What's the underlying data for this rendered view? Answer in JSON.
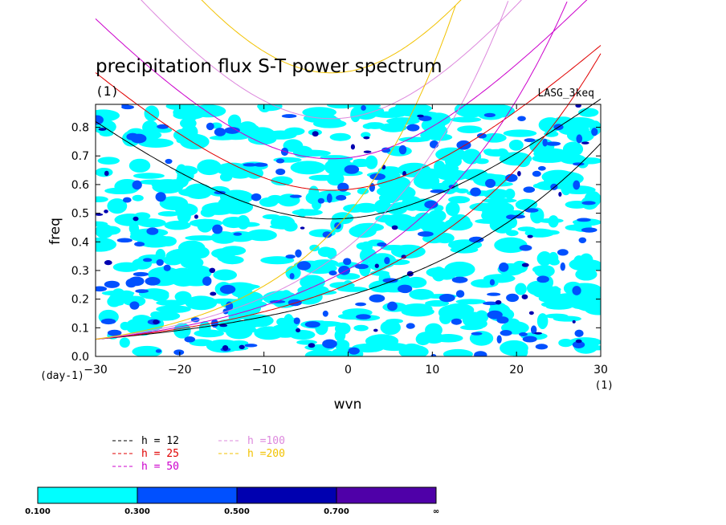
{
  "chart_data": {
    "type": "heatmap",
    "title": "precipitation flux S-T power spectrum",
    "subtitle": "(1)",
    "model": "LASG_3keq",
    "xlabel": "wvn",
    "ylabel": "freq",
    "x_unit": "(1)",
    "y_unit": "(day-1)",
    "xlim": [
      -30,
      30
    ],
    "ylim": [
      0,
      0.88
    ],
    "x_ticks": [
      "−30",
      "−20",
      "−10",
      "0",
      "10",
      "20",
      "30"
    ],
    "y_ticks": [
      "0.0",
      "0.1",
      "0.2",
      "0.3",
      "0.4",
      "0.5",
      "0.6",
      "0.7",
      "0.8"
    ],
    "x_tick_values": [
      -30,
      -20,
      -10,
      0,
      10,
      20,
      30
    ],
    "y_tick_values": [
      0,
      0.1,
      0.2,
      0.3,
      0.4,
      0.5,
      0.6,
      0.7,
      0.8
    ],
    "colorbar": {
      "levels": [
        "0.100",
        "0.300",
        "0.500",
        "0.700",
        "∞"
      ],
      "colors": [
        "#00ffff",
        "#0050ff",
        "#0000b0",
        "#4f00a8"
      ]
    },
    "dispersion_curves": [
      {
        "label": "h = 12",
        "color": "#000000",
        "min_freq": 0.48,
        "min_wvn": -2
      },
      {
        "label": "h = 25",
        "color": "#e00000",
        "min_freq": 0.58,
        "min_wvn": -2
      },
      {
        "label": "h = 50",
        "color": "#cc00cc",
        "min_freq": 0.69,
        "min_wvn": -2
      },
      {
        "label": "h =100",
        "color": "#dd88dd",
        "min_freq": 0.83,
        "min_wvn": -2
      },
      {
        "label": "h =200",
        "color": "#f2c200",
        "min_freq": 0.99,
        "min_wvn": -2
      }
    ]
  }
}
